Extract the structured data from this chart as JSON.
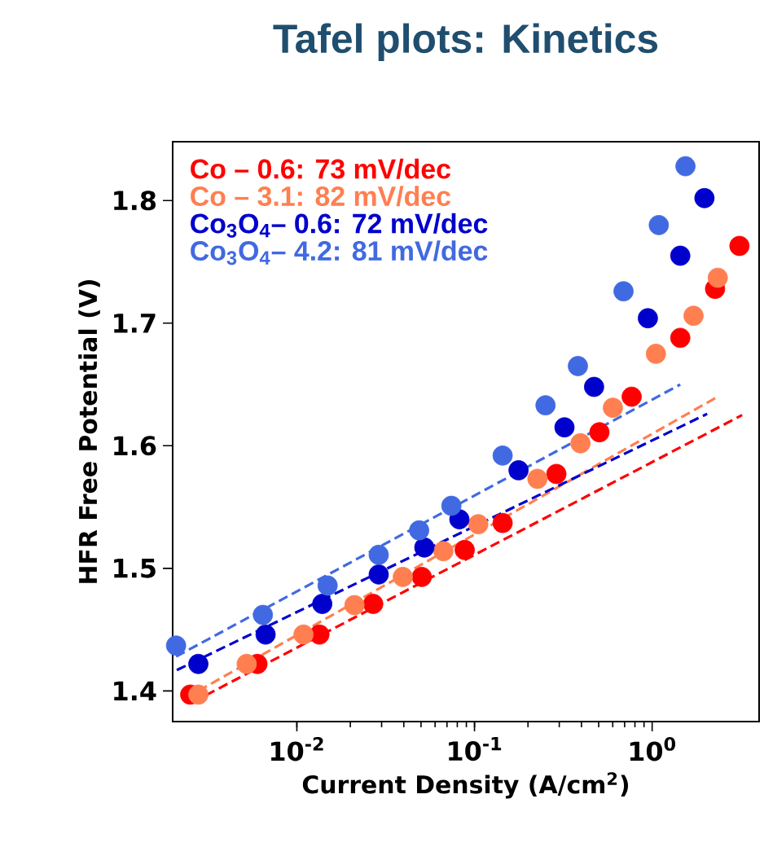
{
  "chart_data": {
    "type": "scatter",
    "title": "Tafel plots: Kinetics",
    "xlabel": "Current Density (A/cm$^{2}$)",
    "ylabel": "HFR Free Potential (V)",
    "log": "x",
    "xlim": [
      0.002,
      4
    ],
    "ylim": [
      1.375,
      1.848
    ],
    "xticks": [
      {
        "value": 0.01,
        "label": "10$^{-2}$"
      },
      {
        "value": 0.1,
        "label": "10$^{-1}$"
      },
      {
        "value": 1,
        "label": "10$^{0}$"
      }
    ],
    "yticks": [
      1.4,
      1.5,
      1.6,
      1.7,
      1.8
    ],
    "grid": false,
    "legend": "top left",
    "marker": "circle",
    "series": [
      {
        "name": "Co – 0.6: 73 mV/dec",
        "color": "#ff0000",
        "x": [
          0.00251,
          0.006,
          0.0134,
          0.0269,
          0.0505,
          0.0881,
          0.144,
          0.289,
          0.505,
          0.767,
          1.44,
          2.26,
          3.1
        ],
        "values": [
          1.397,
          1.422,
          1.446,
          1.471,
          1.493,
          1.515,
          1.537,
          1.577,
          1.611,
          1.64,
          1.688,
          1.728,
          1.763
        ]
      },
      {
        "name": "Co – 3.1: 82 mV/dec",
        "color": "#ff7f50",
        "x": [
          0.00279,
          0.00522,
          0.0109,
          0.0211,
          0.0395,
          0.0668,
          0.105,
          0.226,
          0.395,
          0.601,
          1.05,
          1.71,
          2.34
        ],
        "values": [
          1.397,
          1.422,
          1.446,
          1.47,
          1.493,
          1.514,
          1.536,
          1.573,
          1.602,
          1.631,
          1.675,
          1.706,
          1.737
        ]
      },
      {
        "name": "Co$_{3}$O$_{4}$– 0.6: 72 mV/dec",
        "color": "#0000cd",
        "x": [
          0.00279,
          0.00667,
          0.0139,
          0.0289,
          0.0522,
          0.0822,
          0.177,
          0.321,
          0.471,
          0.946,
          1.44,
          1.97
        ],
        "values": [
          1.422,
          1.446,
          1.471,
          1.495,
          1.517,
          1.54,
          1.58,
          1.615,
          1.648,
          1.704,
          1.755,
          1.802
        ]
      },
      {
        "name": "Co$_{3}$O$_{4}$– 4.2: 81 mV/dec",
        "color": "#4169e1",
        "x": [
          0.00209,
          0.00644,
          0.0149,
          0.0289,
          0.0488,
          0.0741,
          0.144,
          0.251,
          0.382,
          0.69,
          1.09,
          1.54
        ],
        "values": [
          1.437,
          1.462,
          1.486,
          1.511,
          1.531,
          1.551,
          1.592,
          1.633,
          1.665,
          1.726,
          1.78,
          1.828
        ]
      },
      {
        "type": "line",
        "line_style": "dashed",
        "marker": "none",
        "color": "#ff0000",
        "x": [
          0.0026,
          3.21
        ],
        "values": [
          1.391,
          1.625
        ]
      },
      {
        "type": "line",
        "line_style": "dashed",
        "marker": "none",
        "color": "#ff7f50",
        "x": [
          0.00279,
          2.34
        ],
        "values": [
          1.4,
          1.64
        ]
      },
      {
        "type": "line",
        "line_style": "dashed",
        "marker": "none",
        "color": "#0000cd",
        "x": [
          0.00211,
          2.04
        ],
        "values": [
          1.417,
          1.626
        ]
      },
      {
        "type": "line",
        "line_style": "dashed",
        "marker": "none",
        "color": "#4169e1",
        "x": [
          0.00209,
          1.44
        ],
        "values": [
          1.428,
          1.65
        ]
      }
    ]
  }
}
